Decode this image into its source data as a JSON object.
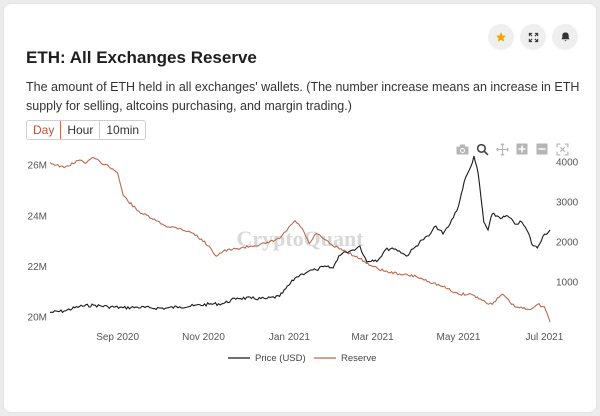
{
  "header": {
    "title": "ETH: All Exchanges Reserve",
    "description": "The amount of ETH held in all exchanges' wallets. (The number increase means an increase in ETH supply for selling, altcoins purchasing, and margin trading.)"
  },
  "toolbar": {
    "tabs": [
      {
        "label": "Day",
        "active": true
      },
      {
        "label": "Hour",
        "active": false
      },
      {
        "label": "10min",
        "active": false
      }
    ]
  },
  "top_icons": [
    "star-icon",
    "expand-icon",
    "bell-icon"
  ],
  "modebar_icons": [
    "camera-icon",
    "zoom-icon",
    "pan-icon",
    "zoom-in-icon",
    "zoom-out-icon",
    "autoscale-icon"
  ],
  "watermark": "CryptoQuant",
  "colors": {
    "price": "#1a1a1a",
    "reserve": "#b86b50",
    "accent": "#c9694a",
    "star": "#f0a500"
  },
  "chart_data": {
    "type": "line",
    "title": "",
    "x_ticks": [
      "Sep 2020",
      "Nov 2020",
      "Jan 2021",
      "Mar 2021",
      "May 2021",
      "Jul 2021"
    ],
    "y_left": {
      "ticks": [
        "20M",
        "22M",
        "24M",
        "26M"
      ],
      "range": [
        19.8,
        26.6
      ],
      "unit": "M ETH"
    },
    "y_right": {
      "ticks": [
        "1000",
        "2000",
        "3000",
        "4000"
      ],
      "range": [
        0,
        4300
      ]
    },
    "grid": false,
    "legend_position": "bottom-center",
    "series": [
      {
        "name": "Price (USD)",
        "axis": "right",
        "x": [
          "2020-07-15",
          "2020-07-25",
          "2020-08-05",
          "2020-08-15",
          "2020-08-25",
          "2020-09-05",
          "2020-09-15",
          "2020-09-25",
          "2020-10-05",
          "2020-10-15",
          "2020-10-25",
          "2020-11-05",
          "2020-11-15",
          "2020-11-25",
          "2020-12-05",
          "2020-12-15",
          "2020-12-25",
          "2021-01-05",
          "2021-01-10",
          "2021-01-15",
          "2021-01-20",
          "2021-01-25",
          "2021-02-01",
          "2021-02-05",
          "2021-02-10",
          "2021-02-15",
          "2021-02-20",
          "2021-02-25",
          "2021-03-01",
          "2021-03-05",
          "2021-03-10",
          "2021-03-15",
          "2021-03-20",
          "2021-03-25",
          "2021-04-01",
          "2021-04-05",
          "2021-04-10",
          "2021-04-15",
          "2021-04-20",
          "2021-04-25",
          "2021-05-01",
          "2021-05-05",
          "2021-05-10",
          "2021-05-12",
          "2021-05-15",
          "2021-05-19",
          "2021-05-22",
          "2021-05-25",
          "2021-06-01",
          "2021-06-05",
          "2021-06-10",
          "2021-06-15",
          "2021-06-20",
          "2021-06-22",
          "2021-06-26",
          "2021-06-30",
          "2021-07-05"
        ],
        "values": [
          240,
          275,
          390,
          420,
          385,
          355,
          370,
          350,
          345,
          380,
          405,
          445,
          460,
          600,
          590,
          580,
          640,
          1100,
          1200,
          1280,
          1300,
          1380,
          1350,
          1650,
          1750,
          1800,
          1900,
          1500,
          1550,
          1550,
          1800,
          1850,
          1780,
          1650,
          1900,
          2050,
          2150,
          2400,
          2200,
          2450,
          2900,
          3500,
          3900,
          4150,
          3700,
          2500,
          2300,
          2700,
          2600,
          2650,
          2450,
          2500,
          2200,
          1950,
          1850,
          2150,
          2300
        ]
      },
      {
        "name": "Reserve",
        "axis": "left",
        "x": [
          "2020-07-15",
          "2020-07-25",
          "2020-08-05",
          "2020-08-10",
          "2020-08-15",
          "2020-08-20",
          "2020-08-25",
          "2020-09-01",
          "2020-09-05",
          "2020-09-15",
          "2020-09-25",
          "2020-10-05",
          "2020-10-15",
          "2020-10-25",
          "2020-11-05",
          "2020-11-10",
          "2020-11-15",
          "2020-11-25",
          "2020-12-05",
          "2020-12-15",
          "2020-12-25",
          "2021-01-05",
          "2021-01-10",
          "2021-01-15",
          "2021-01-20",
          "2021-01-25",
          "2021-02-01",
          "2021-02-10",
          "2021-02-20",
          "2021-03-01",
          "2021-03-10",
          "2021-03-20",
          "2021-04-01",
          "2021-04-10",
          "2021-04-20",
          "2021-05-01",
          "2021-05-10",
          "2021-05-20",
          "2021-05-25",
          "2021-06-01",
          "2021-06-10",
          "2021-06-20",
          "2021-06-26",
          "2021-07-01",
          "2021-07-05"
        ],
        "values": [
          26.1,
          25.9,
          26.2,
          26.1,
          26.3,
          26.1,
          26.0,
          25.7,
          24.8,
          24.2,
          23.9,
          23.6,
          23.5,
          23.3,
          22.8,
          22.4,
          22.6,
          22.7,
          22.8,
          22.9,
          23.1,
          23.8,
          23.5,
          22.9,
          23.3,
          23.1,
          22.8,
          22.6,
          22.3,
          22.0,
          21.8,
          21.7,
          21.6,
          21.4,
          21.2,
          20.9,
          20.9,
          20.6,
          20.5,
          20.9,
          20.4,
          20.3,
          20.5,
          20.4,
          19.8
        ]
      }
    ]
  }
}
